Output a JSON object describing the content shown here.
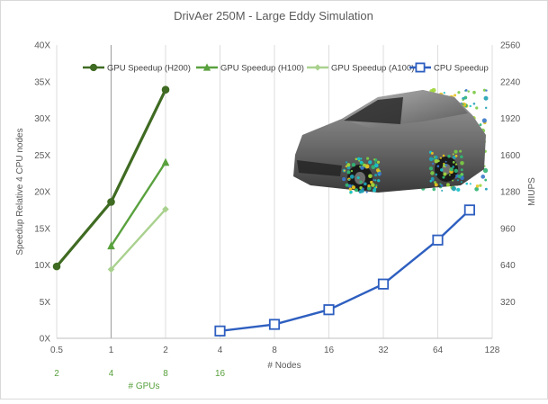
{
  "chart_data": {
    "type": "line",
    "title": "DrivAer 250M - Large Eddy Simulation",
    "xlabel": "# Nodes",
    "x2label": "# GPUs",
    "ylabel": "Speedup Relative 4 CPU nodes",
    "y2label": "MIUPS",
    "x_scale": "log2",
    "x_ticks": [
      "0.5",
      "1",
      "2",
      "4",
      "8",
      "16",
      "32",
      "64",
      "128"
    ],
    "x_tick_values": [
      0.5,
      1,
      2,
      4,
      8,
      16,
      32,
      64,
      128
    ],
    "gpu_ticks": [
      "2",
      "4",
      "8",
      "16"
    ],
    "gpu_tick_node_values": [
      0.5,
      1,
      2,
      4
    ],
    "ylim": [
      0,
      40
    ],
    "y_ticks": [
      "0X",
      "5X",
      "10X",
      "15X",
      "20X",
      "25X",
      "30X",
      "35X",
      "40X"
    ],
    "y_tick_values": [
      0,
      5,
      10,
      15,
      20,
      25,
      30,
      35,
      40
    ],
    "y2lim": [
      0,
      2560
    ],
    "y2_ticks": [
      "320",
      "640",
      "960",
      "1280",
      "1600",
      "1920",
      "2240",
      "2560"
    ],
    "y2_tick_values": [
      320,
      640,
      960,
      1280,
      1600,
      1920,
      2240,
      2560
    ],
    "grid": "vertical",
    "legend_position": "top",
    "image_inset": "car-flow-visualization",
    "series": [
      {
        "name": "GPU Speedup (H200)",
        "marker": "circle",
        "color": "#3f6b22",
        "width": 3.2,
        "x": [
          0.5,
          1,
          2
        ],
        "y": [
          9.8,
          18.6,
          33.9
        ]
      },
      {
        "name": "GPU Speedup (H100)",
        "marker": "triangle",
        "color": "#59a13e",
        "width": 2.4,
        "x": [
          1,
          2
        ],
        "y": [
          12.6,
          24.0
        ]
      },
      {
        "name": "GPU Speedup (A100)",
        "marker": "diamond",
        "color": "#a9d18e",
        "width": 2.4,
        "x": [
          1,
          2
        ],
        "y": [
          9.4,
          17.6
        ]
      },
      {
        "name": "CPU Speedup",
        "marker": "square",
        "color": "#2e5fc0",
        "width": 2.4,
        "x": [
          4,
          8,
          16,
          32,
          64,
          96
        ],
        "y": [
          1,
          1.9,
          3.9,
          7.4,
          13.4,
          17.5
        ]
      }
    ]
  }
}
